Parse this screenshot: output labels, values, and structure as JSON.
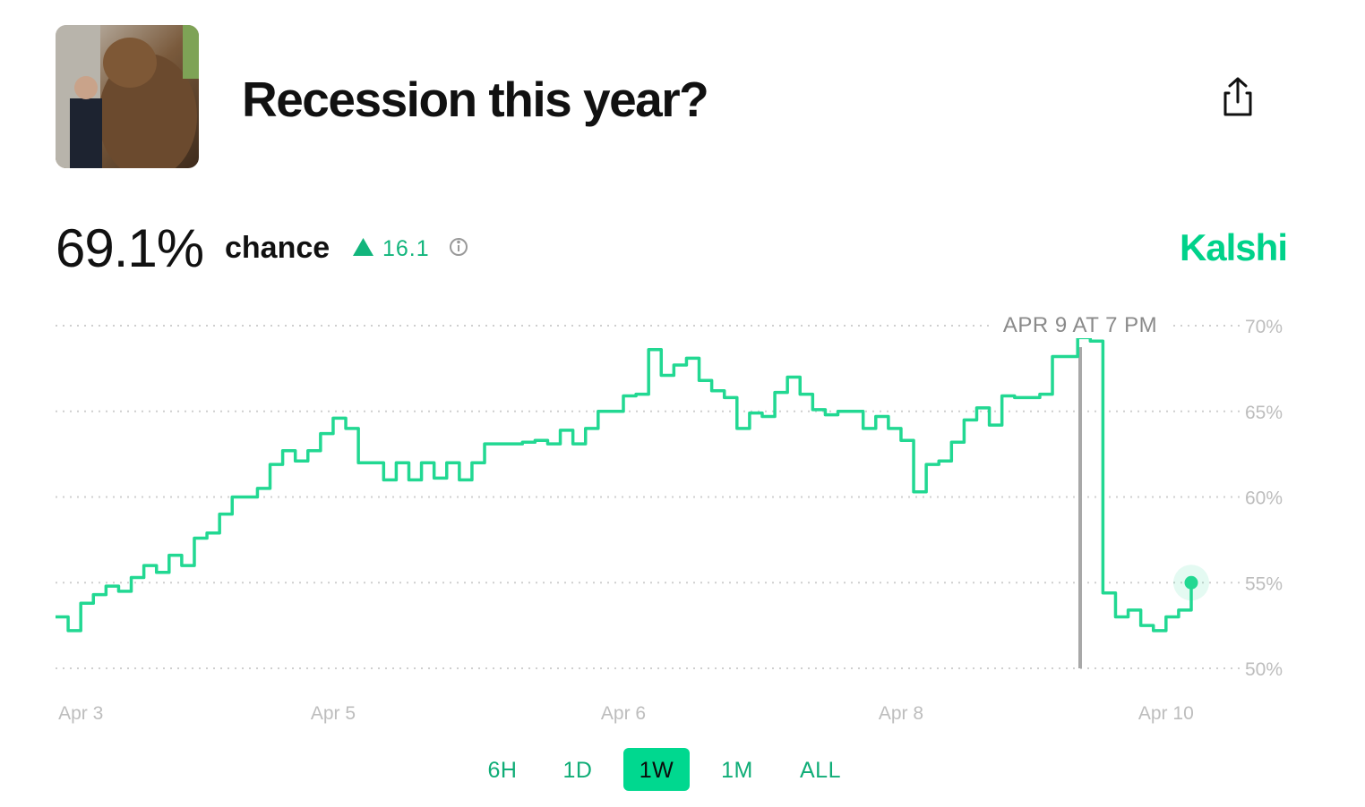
{
  "header": {
    "title": "Recession this year?"
  },
  "summary": {
    "probability": "69.1%",
    "label": "chance",
    "change": "16.1",
    "source": "Kalshi"
  },
  "chart_data": {
    "type": "line",
    "color": "#22d892",
    "annotation": "APR 9 AT 7 PM",
    "categories": [
      null,
      null,
      "Apr 3",
      null,
      null,
      null,
      null,
      null,
      null,
      null,
      null,
      null,
      null,
      null,
      null,
      null,
      null,
      null,
      null,
      null,
      null,
      null,
      "Apr 5",
      null,
      null,
      null,
      null,
      null,
      null,
      null,
      null,
      null,
      null,
      null,
      null,
      null,
      null,
      null,
      null,
      null,
      null,
      null,
      null,
      null,
      null,
      "Apr 6",
      null,
      null,
      null,
      null,
      null,
      null,
      null,
      null,
      null,
      null,
      null,
      null,
      null,
      null,
      null,
      null,
      null,
      null,
      null,
      null,
      null,
      "Apr 8",
      null,
      null,
      null,
      null,
      null,
      null,
      null,
      null,
      null,
      null,
      null,
      null,
      null,
      null,
      null,
      null,
      null,
      null,
      null,
      null,
      "Apr 10",
      null,
      null
    ],
    "values": [
      53.0,
      52.2,
      53.8,
      54.3,
      54.8,
      54.5,
      55.3,
      56.0,
      55.6,
      56.6,
      56.0,
      57.6,
      57.9,
      59.0,
      60.0,
      60.0,
      60.5,
      61.9,
      62.7,
      62.1,
      62.7,
      63.7,
      64.6,
      64.0,
      62.0,
      62.0,
      61.0,
      62.0,
      61.0,
      62.0,
      61.1,
      62.0,
      61.0,
      62.0,
      63.1,
      63.1,
      63.1,
      63.2,
      63.3,
      63.1,
      63.9,
      63.1,
      64.0,
      65.0,
      65.0,
      65.9,
      66.0,
      68.6,
      67.1,
      67.7,
      68.1,
      66.8,
      66.2,
      65.8,
      64.0,
      64.9,
      64.7,
      66.1,
      67.0,
      66.0,
      65.1,
      64.8,
      65.0,
      65.0,
      64.0,
      64.7,
      64.0,
      63.3,
      60.3,
      61.9,
      62.1,
      63.2,
      64.5,
      65.2,
      64.2,
      65.9,
      65.8,
      65.8,
      66.0,
      68.2,
      68.2,
      69.3,
      69.1,
      54.4,
      53.0,
      53.4,
      52.5,
      52.2,
      53.0,
      53.4,
      55.0
    ],
    "ylim": [
      50,
      70
    ],
    "yticks": [
      {
        "value": 50,
        "label": "50%"
      },
      {
        "value": 55,
        "label": "55%"
      },
      {
        "value": 60,
        "label": "60%"
      },
      {
        "value": 65,
        "label": "65%"
      },
      {
        "value": 70,
        "label": "70%"
      }
    ],
    "grid": true
  },
  "range_options": [
    "6H",
    "1D",
    "1W",
    "1M",
    "ALL"
  ],
  "selected_range": "1W"
}
